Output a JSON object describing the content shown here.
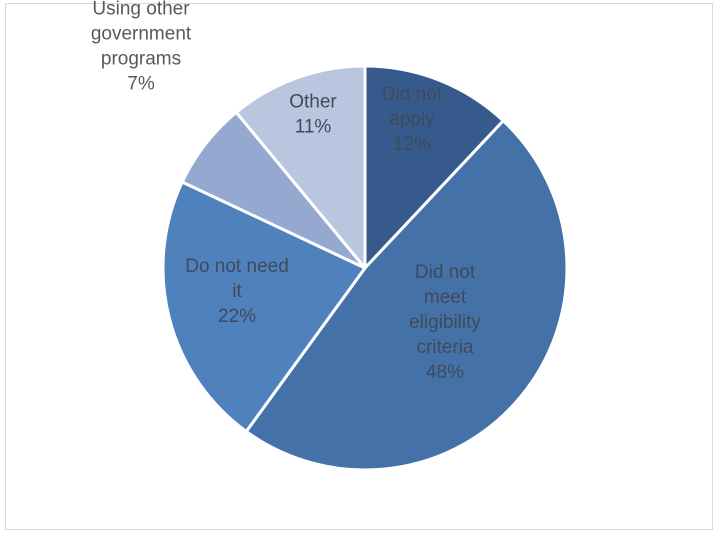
{
  "chart_data": {
    "type": "pie",
    "title": "",
    "slices": [
      {
        "label": [
          "Did not",
          "apply"
        ],
        "value": 12,
        "value_label": "12%",
        "color": "#375a8c"
      },
      {
        "label": [
          "Did not",
          "meet",
          "eligibility",
          "criteria"
        ],
        "value": 48,
        "value_label": "48%",
        "color": "#4472a8"
      },
      {
        "label": [
          "Do not need",
          "it"
        ],
        "value": 22,
        "value_label": "22%",
        "color": "#4f81bd"
      },
      {
        "label": [
          "Using other",
          "government",
          "programs"
        ],
        "value": 7,
        "value_label": "7%",
        "color": "#95a9d0"
      },
      {
        "label": [
          "Other"
        ],
        "value": 11,
        "value_label": "11%",
        "color": "#b9c6df"
      }
    ],
    "start_angle_deg": 0,
    "direction": "clockwise",
    "legend": "none",
    "data_labels": "category and percentage"
  }
}
